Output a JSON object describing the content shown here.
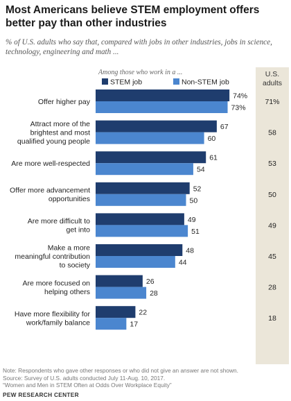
{
  "chart_data": {
    "type": "bar",
    "orientation": "horizontal",
    "title": "Most Americans believe STEM employment offers better pay than other industries",
    "subtitle": "% of U.S. adults who say that, compared with jobs in other industries, jobs in science, technology, engineering and math ...",
    "legend_title": "Among those who work in a ...",
    "legend_position": "top",
    "categories": [
      [
        "Offer higher pay"
      ],
      [
        "Attract more of the",
        "brightest and most",
        "qualified young people"
      ],
      [
        "Are more well-respected"
      ],
      [
        "Offer more advancement",
        "opportunities"
      ],
      [
        "Are more difficult to",
        "get into"
      ],
      [
        "Make a more",
        "meaningful contribution",
        "to society"
      ],
      [
        "Are more focused on",
        "helping others"
      ],
      [
        "Have more flexibility for",
        "work/family balance"
      ]
    ],
    "series": [
      {
        "name": "STEM job",
        "color": "#1f3d6e",
        "values": [
          74,
          67,
          61,
          52,
          49,
          48,
          26,
          22
        ],
        "labels": [
          "74%",
          "67",
          "61",
          "52",
          "49",
          "48",
          "26",
          "22"
        ]
      },
      {
        "name": "Non-STEM job",
        "color": "#4b86cf",
        "values": [
          73,
          60,
          54,
          50,
          51,
          44,
          28,
          17
        ],
        "labels": [
          "73%",
          "60",
          "54",
          "50",
          "51",
          "44",
          "28",
          "17"
        ]
      }
    ],
    "us_adults": {
      "header": [
        "U.S.",
        "adults"
      ],
      "values": [
        71,
        58,
        53,
        50,
        49,
        45,
        28,
        18
      ],
      "labels": [
        "71%",
        "58",
        "53",
        "50",
        "49",
        "45",
        "28",
        "18"
      ],
      "panel_color": "#ebe6d9"
    },
    "xlim": [
      0,
      100
    ],
    "grid": false
  },
  "footer": {
    "note": [
      "Note: Respondents who gave other responses or who did not give an answer are not shown.",
      "Source: Survey of U.S. adults conducted July 11-Aug. 10, 2017.",
      "“Women and Men in STEM Often at Odds Over Workplace Equity”"
    ],
    "org": "PEW RESEARCH CENTER"
  }
}
